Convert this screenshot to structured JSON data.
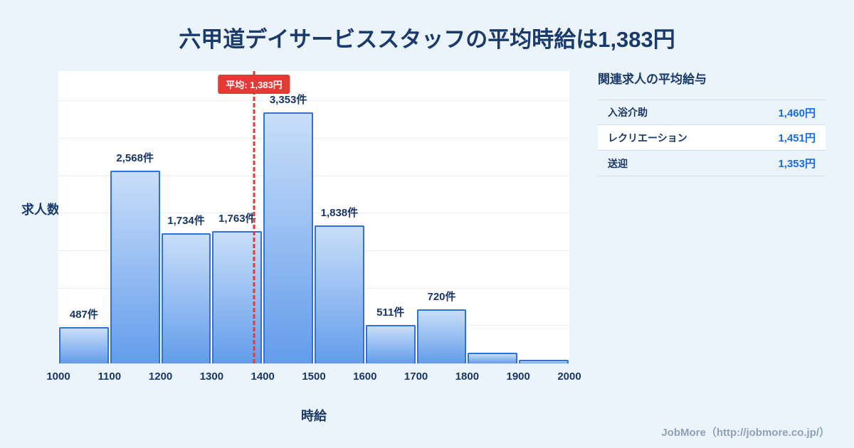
{
  "title": "六甲道デイサービススタッフの平均時給は1,383円",
  "chart_data": {
    "type": "bar",
    "bins": [
      1000,
      1100,
      1200,
      1300,
      1400,
      1500,
      1600,
      1700,
      1800,
      1900,
      2000
    ],
    "categories": [
      "1000",
      "1100",
      "1200",
      "1300",
      "1400",
      "1500",
      "1600",
      "1700",
      "1800",
      "1900",
      "2000"
    ],
    "values": [
      487,
      2568,
      1734,
      1763,
      3353,
      1838,
      511,
      720,
      140,
      45
    ],
    "labels": [
      "487件",
      "2,568件",
      "1,734件",
      "1,763件",
      "3,353件",
      "1,838件",
      "511件",
      "720件",
      "",
      ""
    ],
    "mean": 1383,
    "mean_label": "平均: 1,383円",
    "xlabel": "時給",
    "ylabel": "求人数",
    "ylim": [
      0,
      3900
    ],
    "grid_step": 500,
    "legend": "none",
    "bar_color_top": "#c9def9",
    "bar_color_bottom": "#639ceb",
    "bar_border_color": "#2f72d9",
    "mean_color": "#e53935"
  },
  "panel": {
    "title": "関連求人の平均給与",
    "rows": [
      {
        "label": "入浴介助",
        "value": "1,460円"
      },
      {
        "label": "レクリエーション",
        "value": "1,451円"
      },
      {
        "label": "送迎",
        "value": "1,353円"
      }
    ]
  },
  "footer": {
    "credit": "JobMore（http://jobmore.co.jp/）"
  }
}
